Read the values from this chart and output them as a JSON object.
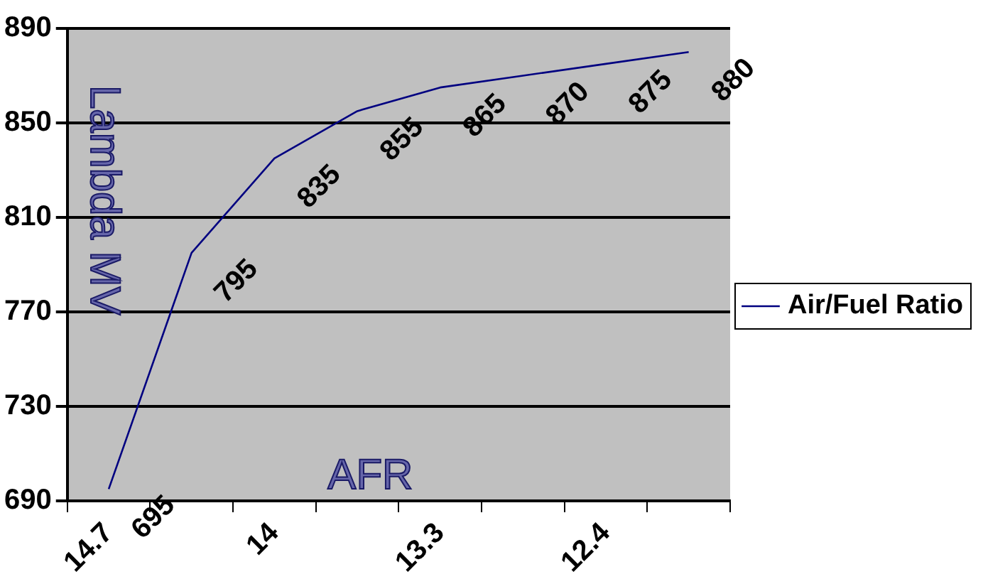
{
  "chart_data": {
    "type": "line",
    "xlabel": "AFR",
    "ylabel": "Lambda MV",
    "categories": [
      "14.7",
      null,
      "14",
      null,
      "13.3",
      null,
      "12.4",
      null
    ],
    "series": [
      {
        "name": "Air/Fuel Ratio",
        "color": "#000080",
        "values": [
          695,
          795,
          835,
          855,
          865,
          870,
          875,
          880
        ]
      }
    ],
    "ylim": [
      690,
      890
    ],
    "yticks": [
      690,
      730,
      770,
      810,
      850,
      890
    ],
    "grid": "y",
    "legend": "right",
    "data_labels": true,
    "marker": "none"
  }
}
